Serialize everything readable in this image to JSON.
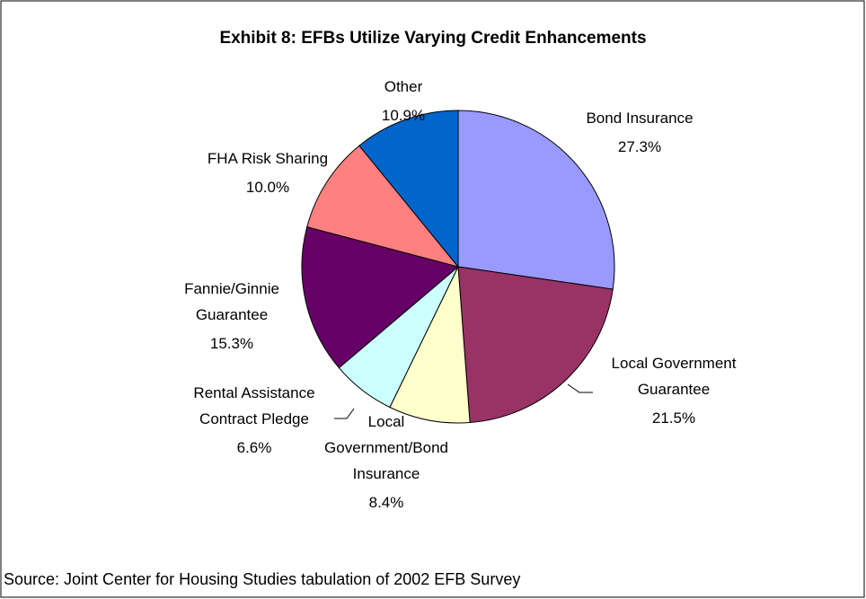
{
  "chart_data": {
    "type": "pie",
    "title": "Exhibit 8:  EFBs Utilize Varying Credit  Enhancements",
    "source": "Source:  Joint Center for Housing Studies tabulation of 2002 EFB Survey",
    "categories": [
      "Bond Insurance",
      "Local Government Guarantee",
      "Local Government/Bond Insurance",
      "Rental Assistance Contract Pledge",
      "Fannie/Ginnie Guarantee",
      "FHA Risk Sharing",
      "Other"
    ],
    "values": [
      27.3,
      21.5,
      8.4,
      6.6,
      15.3,
      10.0,
      10.9
    ],
    "value_labels": [
      "27.3%",
      "21.5%",
      "8.4%",
      "6.6%",
      "15.3%",
      "10.0%",
      "10.9%"
    ],
    "colors": [
      "#9999ff",
      "#993366",
      "#ffffcc",
      "#ccffff",
      "#660066",
      "#ff8080",
      "#0066cc"
    ]
  }
}
